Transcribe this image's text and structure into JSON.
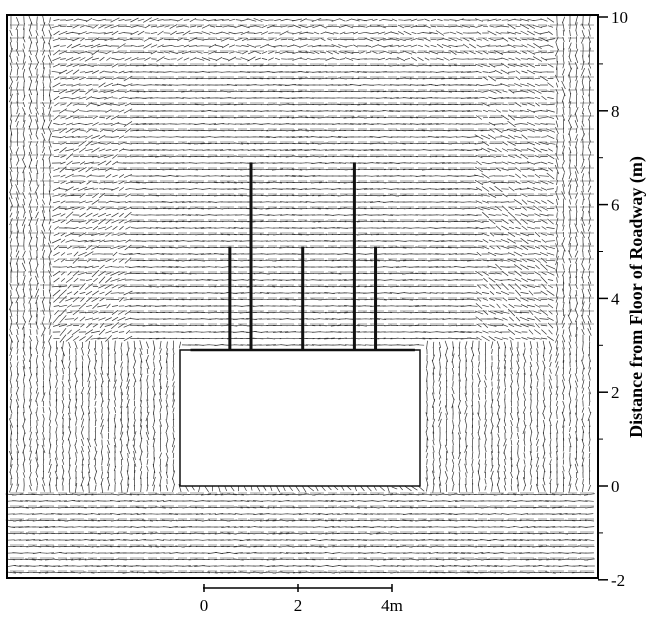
{
  "figure": {
    "y_axis": {
      "label": "Distance from Floor of Roadway (m)",
      "ticks": [
        "10",
        "8",
        "6",
        "4",
        "2",
        "0",
        "-2"
      ]
    },
    "scale_bar": {
      "ticks": [
        "0",
        "2",
        "4m"
      ]
    }
  },
  "model": {
    "domain_y_range": [
      -2,
      10
    ],
    "domain_x_range": [
      -4.2,
      8.4
    ],
    "roadway": {
      "x": [
        -0.5,
        4.7
      ],
      "y": [
        0,
        2.9
      ]
    },
    "long_bolts": {
      "x": [
        1.0,
        3.2
      ],
      "top": 6.9,
      "bottom": 2.9
    },
    "short_bolts": {
      "x": [
        0.55,
        2.1,
        3.65
      ],
      "top": 5.1,
      "bottom": 2.9
    },
    "colors": {
      "ink": "#111111",
      "background": "#ffffff"
    }
  }
}
